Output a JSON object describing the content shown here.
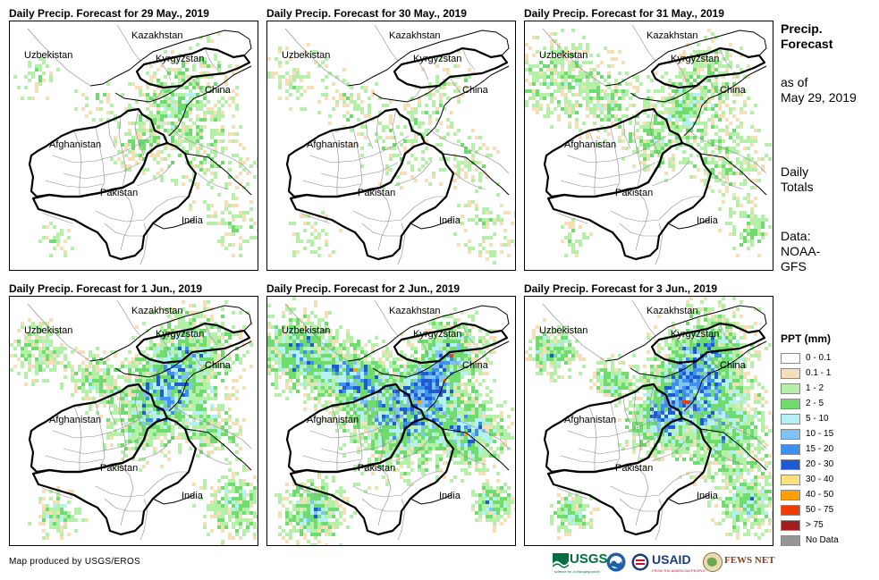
{
  "panels": [
    {
      "title": "Daily Precip. Forecast for 29 May., 2019"
    },
    {
      "title": "Daily Precip. Forecast for 30 May., 2019"
    },
    {
      "title": "Daily Precip. Forecast for 31 May., 2019"
    },
    {
      "title": "Daily Precip. Forecast for 1 Jun., 2019"
    },
    {
      "title": "Daily Precip. Forecast for 2 Jun., 2019"
    },
    {
      "title": "Daily Precip. Forecast for 3 Jun., 2019"
    }
  ],
  "map_labels": {
    "kazakhstan": "Kazakhstan",
    "uzbekistan": "Uzbekistan",
    "kyrgyzstan": "Kyrgyzstan",
    "china": "China",
    "afghanistan": "Afghanistan",
    "pakistan": "Pakistan",
    "india": "India"
  },
  "side_info": {
    "heading_line1": "Precip.",
    "heading_line2": "Forecast",
    "asof_line1": "as of",
    "asof_line2": "May 29, 2019",
    "totals_line1": "Daily",
    "totals_line2": "Totals",
    "data_line1": "Data:",
    "data_line2": "NOAA-",
    "data_line3": "GFS"
  },
  "legend": {
    "title": "PPT (mm)",
    "items": [
      {
        "label": "0 - 0.1",
        "color": "#ffffff"
      },
      {
        "label": "0.1 - 1",
        "color": "#f5dfb8"
      },
      {
        "label": "1 - 2",
        "color": "#b4f0a8"
      },
      {
        "label": "2 - 5",
        "color": "#6edc6e"
      },
      {
        "label": "5 - 10",
        "color": "#b4f0f5"
      },
      {
        "label": "10 - 15",
        "color": "#82c3f5"
      },
      {
        "label": "15 - 20",
        "color": "#3c91f0"
      },
      {
        "label": "20 - 30",
        "color": "#1e5ad2"
      },
      {
        "label": "30 - 40",
        "color": "#fae17d"
      },
      {
        "label": "40 - 50",
        "color": "#ffa000"
      },
      {
        "label": "50 - 75",
        "color": "#f03c00"
      },
      {
        "label": "> 75",
        "color": "#a01e1e"
      },
      {
        "label": "No Data",
        "color": "#969696"
      }
    ]
  },
  "credit": "Map produced by USGS/EROS",
  "logos": {
    "usgs": "USGS",
    "usgs_tagline": "science for a changing world",
    "usaid": "USAID",
    "usaid_tagline": "FROM THE AMERICAN PEOPLE",
    "fewsnet": "FEWS NET"
  },
  "precip_intensity": [
    0.35,
    0.3,
    0.45,
    0.6,
    0.85,
    0.75
  ]
}
